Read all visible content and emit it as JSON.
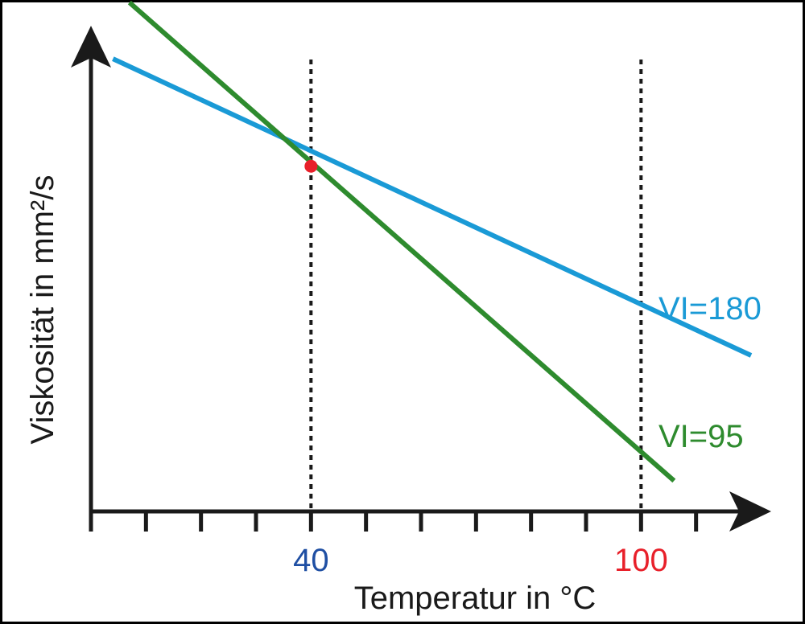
{
  "chart_data": {
    "type": "line",
    "title": "",
    "xlabel": "Temperatur in °C",
    "ylabel": "Viskosität in mm²/s",
    "tick_labels": [
      {
        "text": "40",
        "x": 40,
        "color": "#1f4fa3"
      },
      {
        "text": "100",
        "x": 100,
        "color": "#e8202a"
      }
    ],
    "xlim": [
      0,
      120
    ],
    "ylim": [
      0,
      100
    ],
    "grid": false,
    "reference_lines_x": [
      40,
      100
    ],
    "series": [
      {
        "name": "VI=180",
        "color": "#1a9ad6",
        "x": [
          4,
          120
        ],
        "y": [
          88.5,
          30.5
        ]
      },
      {
        "name": "VI=95",
        "color": "#2e8b2e",
        "x": [
          7,
          106
        ],
        "y": [
          99.5,
          6
        ]
      }
    ],
    "highlight_point": {
      "x": 40,
      "y": 67.5,
      "color": "#e8202a"
    }
  }
}
